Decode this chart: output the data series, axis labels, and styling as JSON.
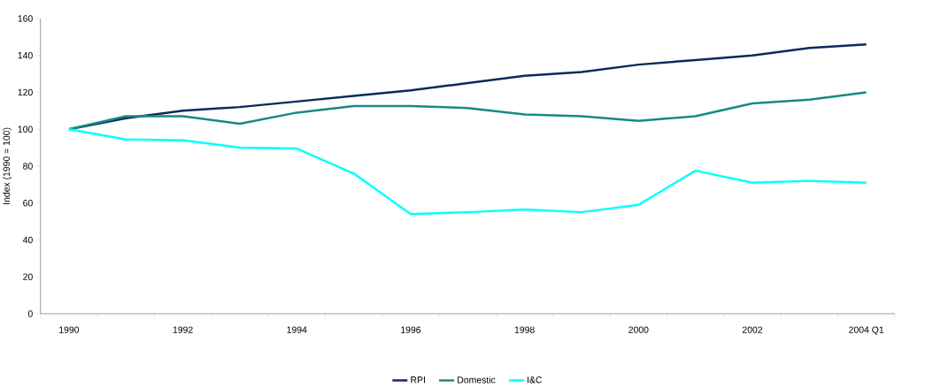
{
  "chart_data": {
    "type": "line",
    "ylabel": "Index (1990 = 100)",
    "categories": [
      "1990",
      null,
      "1992",
      null,
      "1994",
      null,
      "1996",
      null,
      "1998",
      null,
      "2000",
      null,
      "2002",
      null,
      "2004 Q1"
    ],
    "series": [
      {
        "name": "RPI",
        "color": "#0b2a5b",
        "values": [
          100,
          106,
          110,
          112,
          115,
          118,
          121,
          125,
          129,
          131,
          135,
          137.5,
          140,
          144,
          146
        ]
      },
      {
        "name": "Domestic",
        "color": "#168a82",
        "values": [
          100,
          107,
          107,
          103,
          109,
          112.5,
          112.5,
          111.5,
          108,
          107,
          104.5,
          107,
          114,
          116,
          120
        ]
      },
      {
        "name": "I&C",
        "color": "#00ffff",
        "values": [
          100,
          94.5,
          94,
          90,
          89.5,
          76,
          54,
          55,
          56.5,
          55,
          59,
          77.5,
          71,
          72,
          71
        ]
      }
    ],
    "ylim": [
      0,
      160
    ],
    "yticks": [
      0,
      20,
      40,
      60,
      80,
      100,
      120,
      140,
      160
    ],
    "grid": false,
    "legend": "bottom",
    "marker": "none",
    "line_style": "solid"
  }
}
